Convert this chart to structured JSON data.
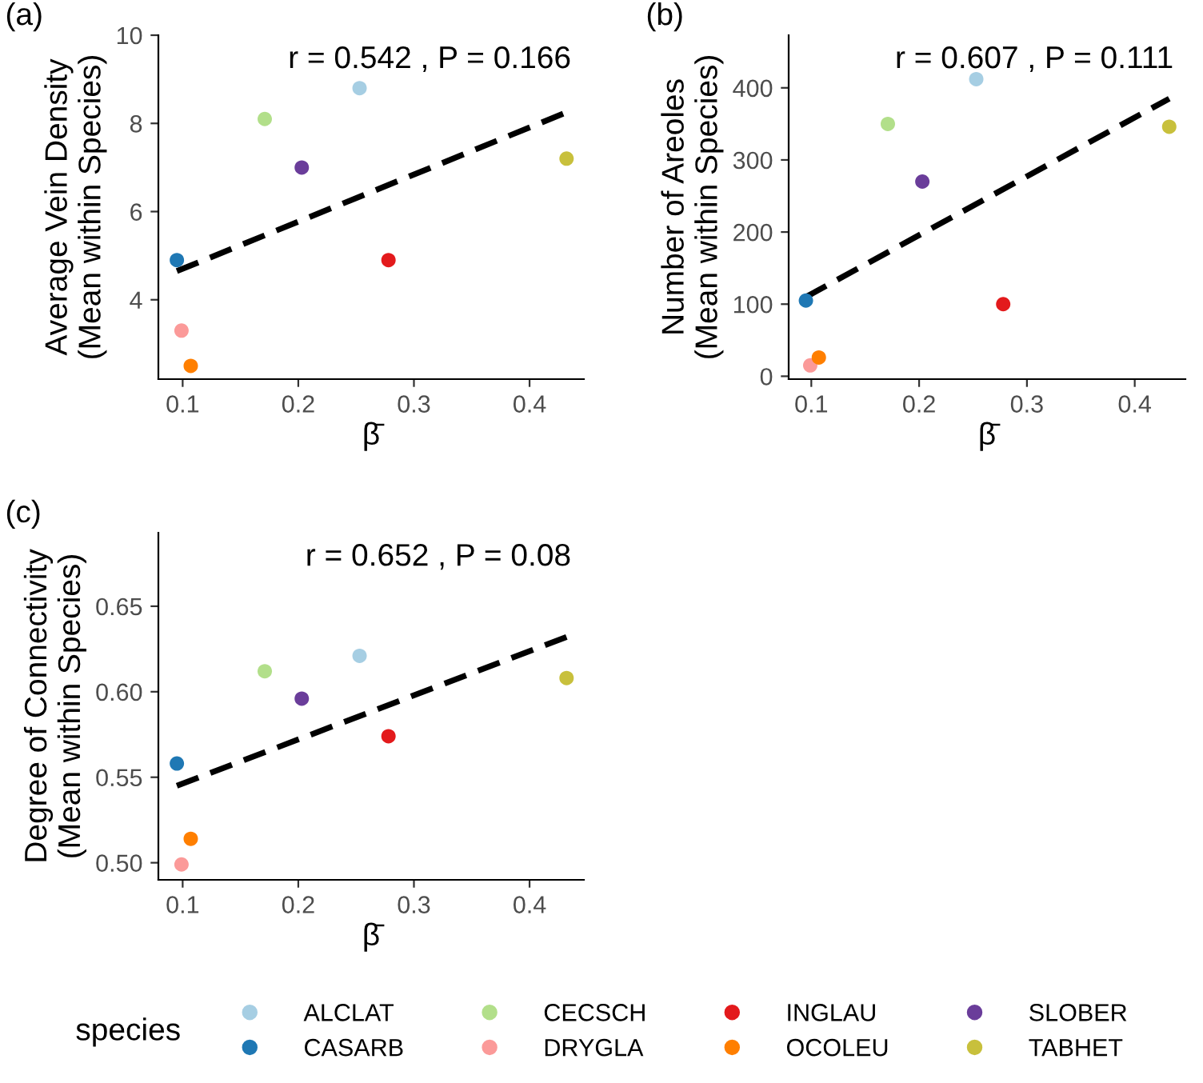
{
  "chart_data": [
    {
      "type": "scatter",
      "title": "(a)",
      "xlabel": "β̄",
      "ylabel": "Average Vein Density\n(Mean within Species)",
      "annotations": [
        "r = 0.542 , P = 0.166"
      ],
      "xlim": [
        0.079,
        0.447
      ],
      "ylim": [
        2.2,
        10
      ],
      "xticks": [
        0.1,
        0.2,
        0.3,
        0.4
      ],
      "yticks": [
        4,
        6,
        8,
        10
      ],
      "grid": false,
      "marker": "circle",
      "legend": "bottom",
      "legend_title": "species",
      "series": [
        {
          "name": "ALCLAT",
          "color": "#a6cee3",
          "x": [
            0.253
          ],
          "values": [
            8.8
          ]
        },
        {
          "name": "CASARB",
          "color": "#1f78b4",
          "x": [
            0.095
          ],
          "values": [
            4.9
          ]
        },
        {
          "name": "CECSCH",
          "color": "#b2df8a",
          "x": [
            0.171
          ],
          "values": [
            8.1
          ]
        },
        {
          "name": "DRYGLA",
          "color": "#fb9a99",
          "x": [
            0.099
          ],
          "values": [
            3.3
          ]
        },
        {
          "name": "INGLAU",
          "color": "#e31a1c",
          "x": [
            0.278
          ],
          "values": [
            4.9
          ]
        },
        {
          "name": "OCOLEU",
          "color": "#ff7f00",
          "x": [
            0.107
          ],
          "values": [
            2.5
          ]
        },
        {
          "name": "SLOBER",
          "color": "#6a3d9a",
          "x": [
            0.203
          ],
          "values": [
            7.0
          ]
        },
        {
          "name": "TABHET",
          "color": "#c8c03c",
          "x": [
            0.432
          ],
          "values": [
            7.2
          ]
        },
        {
          "type": "line",
          "color": "#000000",
          "line_style": "dashed",
          "marker": "none",
          "x": [
            0.095,
            0.432
          ],
          "values": [
            4.65,
            8.25
          ]
        }
      ]
    },
    {
      "type": "scatter",
      "title": "(b)",
      "xlabel": "β̄",
      "ylabel": "Number of Areoles\n(Mean within Species)",
      "annotations": [
        "r = 0.607 , P = 0.111"
      ],
      "xlim": [
        0.079,
        0.447
      ],
      "ylim": [
        -4,
        473
      ],
      "xticks": [
        0.1,
        0.2,
        0.3,
        0.4
      ],
      "yticks": [
        0,
        100,
        200,
        300,
        400
      ],
      "grid": false,
      "marker": "circle",
      "series": [
        {
          "color": "#a6cee3",
          "x": [
            0.253
          ],
          "values": [
            412
          ]
        },
        {
          "color": "#1f78b4",
          "x": [
            0.095
          ],
          "values": [
            105
          ]
        },
        {
          "color": "#b2df8a",
          "x": [
            0.171
          ],
          "values": [
            350
          ]
        },
        {
          "color": "#fb9a99",
          "x": [
            0.099
          ],
          "values": [
            15
          ]
        },
        {
          "color": "#e31a1c",
          "x": [
            0.278
          ],
          "values": [
            100
          ]
        },
        {
          "color": "#ff7f00",
          "x": [
            0.107
          ],
          "values": [
            26
          ]
        },
        {
          "color": "#6a3d9a",
          "x": [
            0.203
          ],
          "values": [
            270
          ]
        },
        {
          "color": "#c8c03c",
          "x": [
            0.432
          ],
          "values": [
            346
          ]
        },
        {
          "type": "line",
          "color": "#000000",
          "line_style": "dashed",
          "marker": "none",
          "x": [
            0.095,
            0.432
          ],
          "values": [
            110,
            385
          ]
        }
      ]
    },
    {
      "type": "scatter",
      "title": "(c)",
      "xlabel": "β̄",
      "ylabel": "Degree of Connectivity\n(Mean within Species)",
      "annotations": [
        "r = 0.652 , P = 0.08"
      ],
      "xlim": [
        0.079,
        0.447
      ],
      "ylim": [
        0.49,
        0.693
      ],
      "xticks": [
        0.1,
        0.2,
        0.3,
        0.4
      ],
      "yticks": [
        {
          "value": 0.5,
          "label": "0.50"
        },
        {
          "value": 0.55,
          "label": "0.55"
        },
        {
          "value": 0.6,
          "label": "0.60"
        },
        {
          "value": 0.65,
          "label": "0.65"
        }
      ],
      "grid": false,
      "marker": "circle",
      "series": [
        {
          "color": "#a6cee3",
          "x": [
            0.253
          ],
          "values": [
            0.621
          ]
        },
        {
          "color": "#1f78b4",
          "x": [
            0.095
          ],
          "values": [
            0.558
          ]
        },
        {
          "color": "#b2df8a",
          "x": [
            0.171
          ],
          "values": [
            0.612
          ]
        },
        {
          "color": "#fb9a99",
          "x": [
            0.099
          ],
          "values": [
            0.499
          ]
        },
        {
          "color": "#e31a1c",
          "x": [
            0.278
          ],
          "values": [
            0.574
          ]
        },
        {
          "color": "#ff7f00",
          "x": [
            0.107
          ],
          "values": [
            0.514
          ]
        },
        {
          "color": "#6a3d9a",
          "x": [
            0.203
          ],
          "values": [
            0.596
          ]
        },
        {
          "color": "#c8c03c",
          "x": [
            0.432
          ],
          "values": [
            0.608
          ]
        },
        {
          "type": "line",
          "color": "#000000",
          "line_style": "dashed",
          "marker": "none",
          "x": [
            0.095,
            0.432
          ],
          "values": [
            0.545,
            0.632
          ]
        }
      ]
    }
  ]
}
